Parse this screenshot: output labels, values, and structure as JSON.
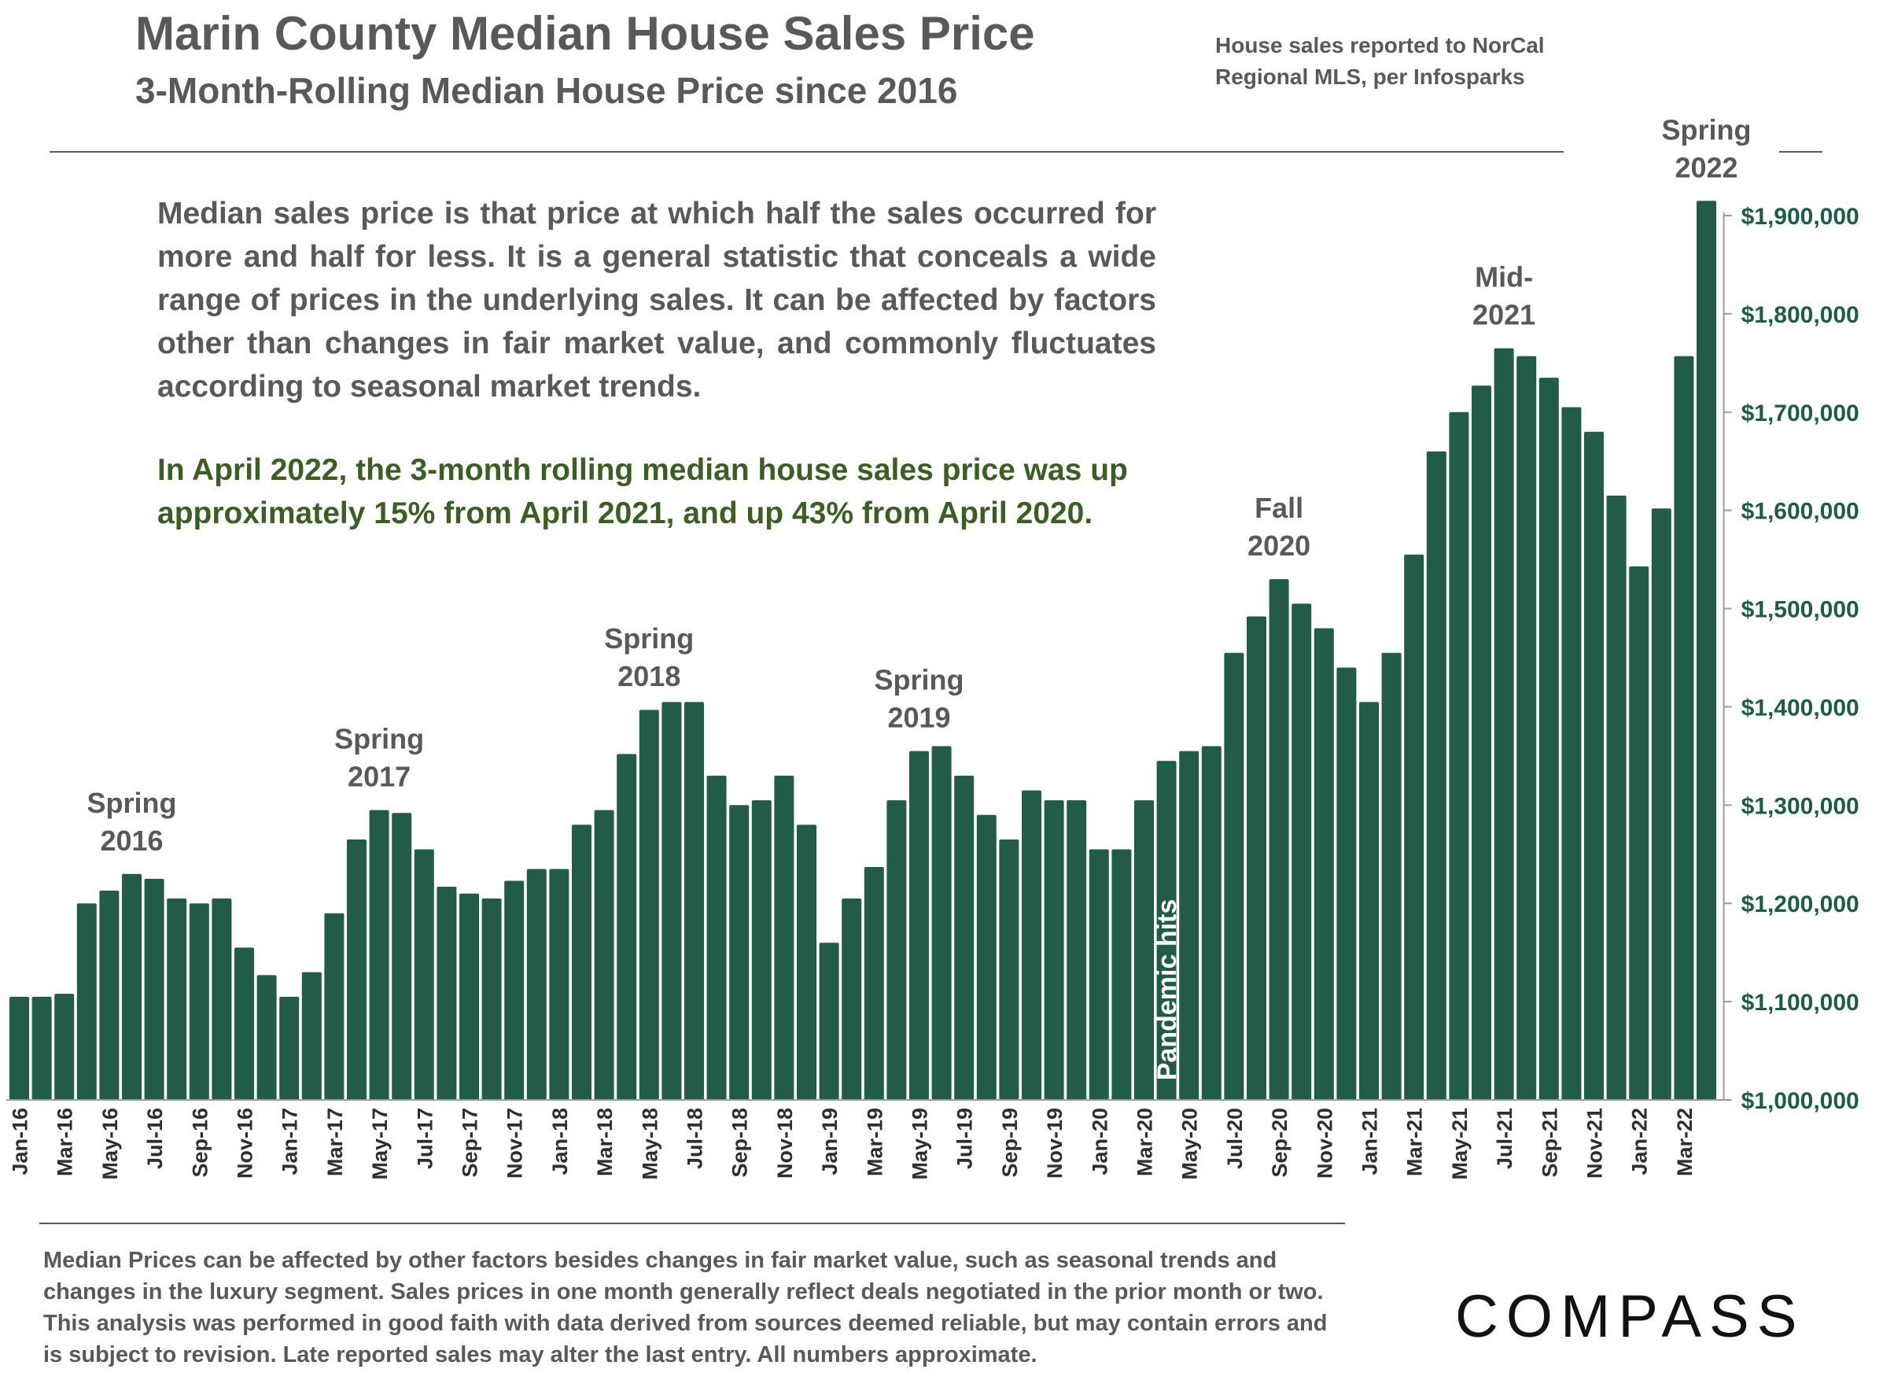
{
  "header": {
    "title": "Marin County Median House Sales Price",
    "subtitle": "3-Month-Rolling Median House Price since 2016",
    "source_line1": "House sales reported to NorCal",
    "source_line2": "Regional MLS, per Infosparks"
  },
  "description": "Median sales price is that price at which half the sales occurred for more and half for less. It is a general statistic that conceals a wide range of prices in the underlying sales. It can be affected by factors other than changes in fair market value, and commonly fluctuates according to seasonal market trends.",
  "highlight": "In April 2022, the 3-month rolling median house sales price was up approximately 15% from April 2021, and up 43% from April 2020.",
  "footnote": "Median Prices can be affected by other factors besides changes in fair market value, such as seasonal trends and changes in the luxury segment. Sales prices in one month generally reflect deals negotiated in the prior month or two. This analysis was performed in good faith with data derived from sources deemed reliable, but may contain errors and is subject to revision. Late reported sales may alter the last entry. All numbers approximate.",
  "logo": "COMPASS",
  "colors": {
    "bar": "#225c48",
    "axis_label": "#1f5c46",
    "highlight_text": "#3b5e24",
    "text": "#595959"
  },
  "chart_data": {
    "type": "bar",
    "title": "Marin County Median House Sales Price",
    "categories": [
      "Jan-16",
      "Feb-16",
      "Mar-16",
      "Apr-16",
      "May-16",
      "Jun-16",
      "Jul-16",
      "Aug-16",
      "Sep-16",
      "Oct-16",
      "Nov-16",
      "Dec-16",
      "Jan-17",
      "Feb-17",
      "Mar-17",
      "Apr-17",
      "May-17",
      "Jun-17",
      "Jul-17",
      "Aug-17",
      "Sep-17",
      "Oct-17",
      "Nov-17",
      "Dec-17",
      "Jan-18",
      "Feb-18",
      "Mar-18",
      "Apr-18",
      "May-18",
      "Jun-18",
      "Jul-18",
      "Aug-18",
      "Sep-18",
      "Oct-18",
      "Nov-18",
      "Dec-18",
      "Jan-19",
      "Feb-19",
      "Mar-19",
      "Apr-19",
      "May-19",
      "Jun-19",
      "Jul-19",
      "Aug-19",
      "Sep-19",
      "Oct-19",
      "Nov-19",
      "Dec-19",
      "Jan-20",
      "Feb-20",
      "Mar-20",
      "Apr-20",
      "May-20",
      "Jun-20",
      "Jul-20",
      "Aug-20",
      "Sep-20",
      "Oct-20",
      "Nov-20",
      "Dec-20",
      "Jan-21",
      "Feb-21",
      "Mar-21",
      "Apr-21",
      "May-21",
      "Jun-21",
      "Jul-21",
      "Aug-21",
      "Sep-21",
      "Oct-21",
      "Nov-21",
      "Dec-21",
      "Jan-22",
      "Feb-22",
      "Mar-22",
      "Apr-22"
    ],
    "tick_labels": [
      "Jan-16",
      "Mar-16",
      "May-16",
      "Jul-16",
      "Sep-16",
      "Nov-16",
      "Jan-17",
      "Mar-17",
      "May-17",
      "Jul-17",
      "Sep-17",
      "Nov-17",
      "Jan-18",
      "Mar-18",
      "May-18",
      "Jul-18",
      "Sep-18",
      "Nov-18",
      "Jan-19",
      "Mar-19",
      "May-19",
      "Jul-19",
      "Sep-19",
      "Nov-19",
      "Jan-20",
      "Mar-20",
      "May-20",
      "Jul-20",
      "Sep-20",
      "Nov-20",
      "Jan-21",
      "Mar-21",
      "May-21",
      "Jul-21",
      "Sep-21",
      "Nov-21",
      "Jan-22",
      "Mar-22"
    ],
    "values": [
      1105000,
      1105000,
      1108000,
      1200000,
      1213000,
      1230000,
      1225000,
      1205000,
      1200000,
      1205000,
      1155000,
      1127000,
      1105000,
      1130000,
      1190000,
      1265000,
      1295000,
      1292000,
      1255000,
      1217000,
      1210000,
      1205000,
      1223000,
      1235000,
      1235000,
      1280000,
      1295000,
      1352000,
      1397000,
      1405000,
      1405000,
      1330000,
      1300000,
      1305000,
      1330000,
      1280000,
      1160000,
      1205000,
      1237000,
      1305000,
      1355000,
      1360000,
      1330000,
      1290000,
      1265000,
      1315000,
      1305000,
      1305000,
      1255000,
      1255000,
      1305000,
      1345000,
      1355000,
      1360000,
      1455000,
      1492000,
      1530000,
      1505000,
      1480000,
      1440000,
      1405000,
      1455000,
      1555000,
      1660000,
      1700000,
      1727000,
      1765000,
      1757000,
      1735000,
      1705000,
      1680000,
      1615000,
      1543000,
      1602000,
      1757000,
      1915000
    ],
    "ylim": [
      1000000,
      1900000
    ],
    "y_ticks": [
      "$1,000,000",
      "$1,100,000",
      "$1,200,000",
      "$1,300,000",
      "$1,400,000",
      "$1,500,000",
      "$1,600,000",
      "$1,700,000",
      "$1,800,000",
      "$1,900,000"
    ],
    "y_axis_side": "right",
    "grid": false,
    "annotations": [
      {
        "line1": "Spring",
        "line2": "2016",
        "month_index": 5
      },
      {
        "line1": "Spring",
        "line2": "2017",
        "month_index": 16
      },
      {
        "line1": "Spring",
        "line2": "2018",
        "month_index": 28
      },
      {
        "line1": "Spring",
        "line2": "2019",
        "month_index": 40
      },
      {
        "line1": "Fall",
        "line2": "2020",
        "month_index": 56
      },
      {
        "line1": "Mid-",
        "line2": "2021",
        "month_index": 66
      },
      {
        "line1": "Spring",
        "line2": "2022",
        "month_index": 75
      },
      {
        "line1": "Pandemic hits",
        "line2": "",
        "month_index": 51,
        "orientation": "vertical"
      }
    ]
  }
}
